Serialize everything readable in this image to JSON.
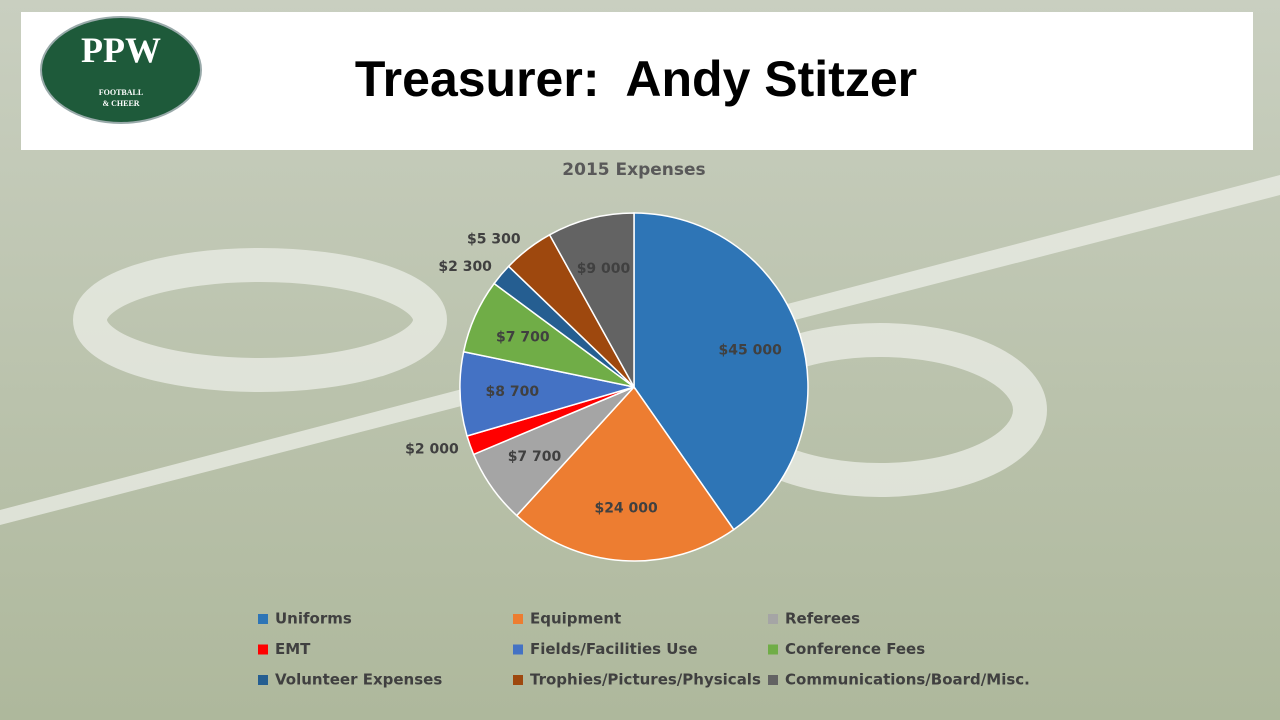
{
  "slide_title": "Treasurer:  Andy Stitzer",
  "logo": {
    "title": "PPW",
    "line1": "FOOTBALL",
    "line2": "& CHEER"
  },
  "chart_data": {
    "type": "pie",
    "title": "2015 Expenses",
    "categories": [
      "Uniforms",
      "Equipment",
      "Referees",
      "EMT",
      "Fields/Facilities Use",
      "Conference Fees",
      "Volunteer Expenses",
      "Trophies/Pictures/Physicals",
      "Communications/Board/Misc."
    ],
    "values": [
      45000,
      24000,
      7700,
      2000,
      8700,
      7700,
      2300,
      5300,
      9000
    ],
    "value_labels": [
      "$45 000",
      "$24 000",
      "$7 700",
      "$2 000",
      "$8 700",
      "$7 700",
      "$2 300",
      "$5 300",
      "$9 000"
    ],
    "colors": [
      "#2e75b6",
      "#ed7d31",
      "#a5a5a5",
      "#ff0000",
      "#4472c4",
      "#70ad47",
      "#255e91",
      "#9e480e",
      "#636363"
    ],
    "legend": "bottom"
  }
}
